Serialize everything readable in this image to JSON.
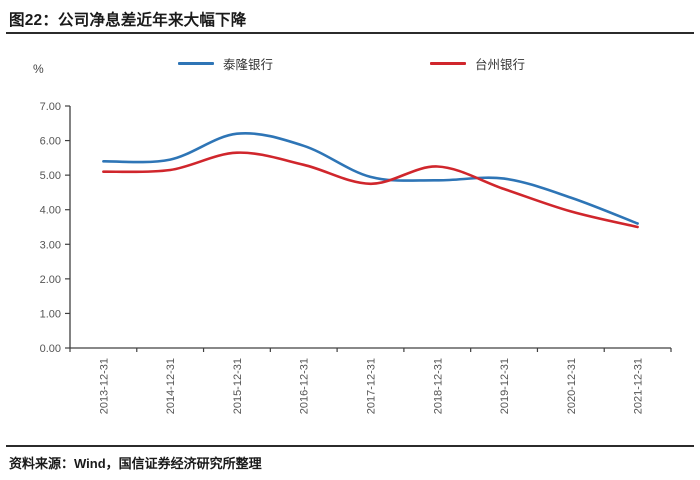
{
  "title": "图22：公司净息差近年来大幅下降",
  "source": "资料来源：Wind，国信证券经济研究所整理",
  "chart_data": {
    "type": "line",
    "title": "图22：公司净息差近年来大幅下降",
    "unit_label": "%",
    "xlabel": "",
    "ylabel": "%",
    "categories": [
      "2013-12-31",
      "2014-12-31",
      "2015-12-31",
      "2016-12-31",
      "2017-12-31",
      "2018-12-31",
      "2019-12-31",
      "2020-12-31",
      "2021-12-31"
    ],
    "series": [
      {
        "name": "泰隆银行",
        "color": "#2E75B6",
        "values": [
          5.4,
          5.45,
          6.2,
          5.85,
          4.95,
          4.85,
          4.9,
          4.35,
          3.6
        ]
      },
      {
        "name": "台州银行",
        "color": "#D0262C",
        "values": [
          5.1,
          5.15,
          5.65,
          5.3,
          4.75,
          5.25,
          4.6,
          3.95,
          3.5
        ]
      }
    ],
    "ylim": [
      0,
      7
    ],
    "ytick_step": 1,
    "ytick_labels": [
      "0.00",
      "1.00",
      "2.00",
      "3.00",
      "4.00",
      "5.00",
      "6.00",
      "7.00"
    ],
    "grid": false,
    "smooth": true,
    "legend_position": "top"
  },
  "colors": {
    "axis": "#404040",
    "tick_text": "#555555",
    "rule": "#2b2b2b"
  }
}
